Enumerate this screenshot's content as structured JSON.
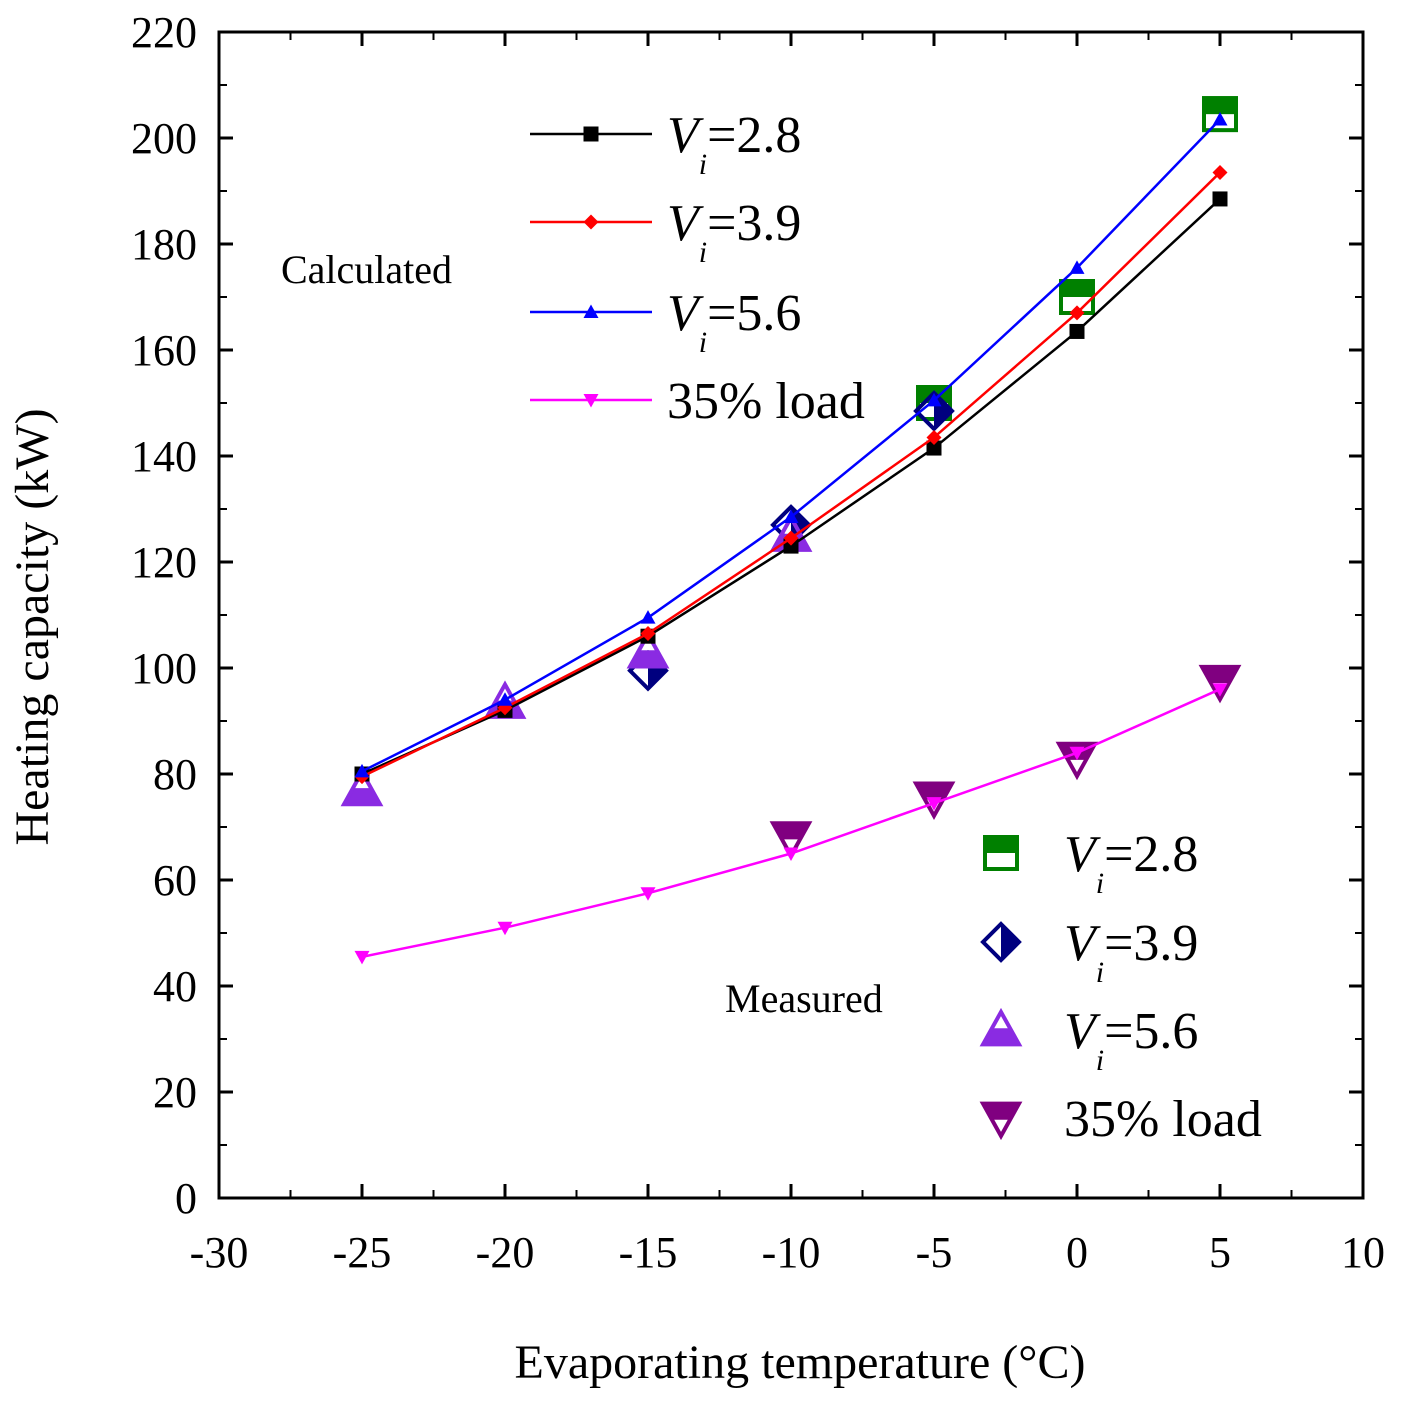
{
  "chart_data": {
    "type": "line",
    "xlabel": "Evaporating temperature (°C)",
    "ylabel": "Heating capacity (kW)",
    "xlim": [
      -30,
      10
    ],
    "ylim": [
      0,
      220
    ],
    "x_ticks": [
      "-30",
      "-25",
      "-20",
      "-15",
      "-10",
      "-5",
      "0",
      "5",
      "10"
    ],
    "y_ticks": [
      "0",
      "20",
      "40",
      "60",
      "80",
      "100",
      "120",
      "140",
      "160",
      "180",
      "200",
      "220"
    ],
    "grid": false,
    "annotations": {
      "calculated": "Calculated",
      "measured": "Measured"
    },
    "calculated_series": [
      {
        "name": "Vi=2.8",
        "var": "V",
        "sub": "i",
        "rest": "=2.8",
        "color": "#000000",
        "marker": "square",
        "x": [
          -25,
          -20,
          -15,
          -10,
          -5,
          0,
          5
        ],
        "y": [
          80,
          92,
          106,
          123,
          141.5,
          163.5,
          188.5
        ]
      },
      {
        "name": "Vi=3.9",
        "var": "V",
        "sub": "i",
        "rest": "=3.9",
        "color": "#ff0000",
        "marker": "diamond",
        "x": [
          -25,
          -20,
          -15,
          -10,
          -5,
          0,
          5
        ],
        "y": [
          79.5,
          92.5,
          106.5,
          124.5,
          143.5,
          167,
          193.5
        ]
      },
      {
        "name": "Vi=5.6",
        "var": "V",
        "sub": "i",
        "rest": "=5.6",
        "color": "#0000ff",
        "marker": "triangle-up",
        "x": [
          -25,
          -20,
          -15,
          -10,
          -5,
          0,
          5
        ],
        "y": [
          80.5,
          94,
          109.5,
          128.5,
          150.5,
          175.5,
          203.5
        ]
      },
      {
        "name": "35% load",
        "var": "",
        "sub": "",
        "rest": "35% load",
        "color": "#ff00ff",
        "marker": "triangle-down",
        "x": [
          -25,
          -20,
          -15,
          -10,
          -5,
          0,
          5
        ],
        "y": [
          45.5,
          51,
          57.5,
          65,
          74.5,
          84,
          96
        ]
      }
    ],
    "measured_series": [
      {
        "name": "Vi=2.8",
        "var": "V",
        "sub": "i",
        "rest": "=2.8",
        "color": "#008000",
        "marker": "square-half",
        "x": [
          -5,
          0,
          5
        ],
        "y": [
          150,
          170,
          204.5
        ]
      },
      {
        "name": "Vi=3.9",
        "var": "V",
        "sub": "i",
        "rest": "=3.9",
        "color": "#00007f",
        "marker": "diamond-half",
        "x": [
          -15,
          -10,
          -5
        ],
        "y": [
          99.5,
          127,
          148.5
        ]
      },
      {
        "name": "Vi=5.6",
        "var": "V",
        "sub": "i",
        "rest": "=5.6",
        "color": "#8a2be2",
        "marker": "triangle-up-half",
        "x": [
          -25,
          -20,
          -15,
          -10
        ],
        "y": [
          77,
          93.5,
          103,
          125
        ]
      },
      {
        "name": "35% load",
        "var": "",
        "sub": "",
        "rest": "35% load",
        "color": "#800080",
        "marker": "triangle-down-half",
        "x": [
          -10,
          -5,
          0,
          5
        ],
        "y": [
          68,
          75.5,
          83,
          97.5
        ]
      }
    ]
  }
}
